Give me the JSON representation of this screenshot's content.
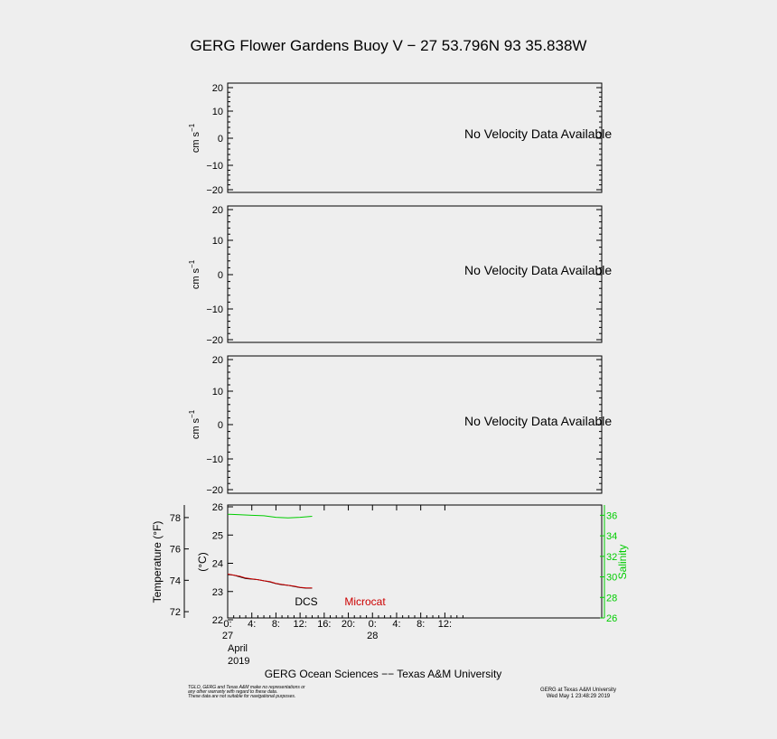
{
  "title": "GERG Flower Gardens Buoy V − 27 53.796N  93 35.838W",
  "velocity_panels": [
    {
      "ylabel": "cm s",
      "ylabel_sup": "−1",
      "message": "No Velocity Data Available",
      "ticks": [
        "20",
        "10",
        "0",
        "−10",
        "−20"
      ]
    },
    {
      "ylabel": "cm s",
      "ylabel_sup": "−1",
      "message": "No Velocity Data Available",
      "ticks": [
        "20",
        "10",
        "0",
        "−10",
        "−20"
      ]
    },
    {
      "ylabel": "cm s",
      "ylabel_sup": "−1",
      "message": "No Velocity Data Available",
      "ticks": [
        "20",
        "10",
        "0",
        "−10",
        "−20"
      ]
    }
  ],
  "colors": {
    "background": "#eeeeee",
    "axes": "#000000",
    "dcs": "#000000",
    "microcat": "#cc0000",
    "salinity": "#00cc00"
  },
  "chart_data": {
    "type": "line",
    "x_range_hours": [
      0,
      62
    ],
    "xticks": [
      {
        "hour": 0,
        "label": "0:"
      },
      {
        "hour": 4,
        "label": "4:"
      },
      {
        "hour": 8,
        "label": "8:"
      },
      {
        "hour": 12,
        "label": "12:"
      },
      {
        "hour": 16,
        "label": "16:"
      },
      {
        "hour": 20,
        "label": "20:"
      },
      {
        "hour": 24,
        "label": "0:"
      },
      {
        "hour": 28,
        "label": "4:"
      },
      {
        "hour": 32,
        "label": "8:"
      },
      {
        "hour": 36,
        "label": "12:"
      }
    ],
    "day_labels": [
      {
        "hour": 0,
        "label": "27"
      },
      {
        "hour": 24,
        "label": "28"
      }
    ],
    "month_label": "April",
    "year_label": "2019",
    "left_axis_f": {
      "label": "Temperature (°F)",
      "range": [
        71.6,
        78.8
      ],
      "ticks": [
        "72",
        "74",
        "76",
        "78"
      ]
    },
    "left_axis_c": {
      "label": "(°C)",
      "range": [
        22,
        26
      ],
      "ticks": [
        "22",
        "23",
        "24",
        "25",
        "26"
      ]
    },
    "right_axis": {
      "label": "Salinity",
      "range": [
        26,
        37
      ],
      "ticks": [
        "26",
        "28",
        "30",
        "32",
        "34",
        "36"
      ]
    },
    "series": [
      {
        "name": "DCS",
        "axis": "celsius",
        "x": [
          0,
          1,
          2,
          3,
          4,
          5,
          6,
          7,
          8,
          9,
          10,
          11,
          12,
          13,
          14
        ],
        "y": [
          23.6,
          23.58,
          23.52,
          23.46,
          23.44,
          23.42,
          23.38,
          23.34,
          23.28,
          23.24,
          23.22,
          23.18,
          23.14,
          23.12,
          23.12
        ]
      },
      {
        "name": "Microcat",
        "axis": "celsius",
        "x": [
          0,
          1,
          2,
          3,
          4,
          5,
          6,
          7,
          8,
          9,
          10,
          11,
          12,
          13,
          14
        ],
        "y": [
          23.62,
          23.58,
          23.54,
          23.48,
          23.45,
          23.42,
          23.38,
          23.35,
          23.29,
          23.25,
          23.22,
          23.19,
          23.15,
          23.13,
          23.13
        ]
      },
      {
        "axis": "salinity",
        "x": [
          0,
          2,
          4,
          6,
          8,
          10,
          12,
          14
        ],
        "y": [
          36.1,
          36.05,
          36.0,
          35.95,
          35.8,
          35.75,
          35.8,
          35.9
        ]
      }
    ]
  },
  "footer": {
    "institution": "GERG Ocean Sciences −− Texas A&M University",
    "disclaimer_lines": [
      "TGLO, GERG and Texas A&M make no representations or",
      "any other warranty with regard to these data.",
      "These data are not suitable for navigational purposes."
    ],
    "credit": "GERG at Texas A&M University",
    "timestamp": "Wed May  1 23:48:29 2019"
  }
}
